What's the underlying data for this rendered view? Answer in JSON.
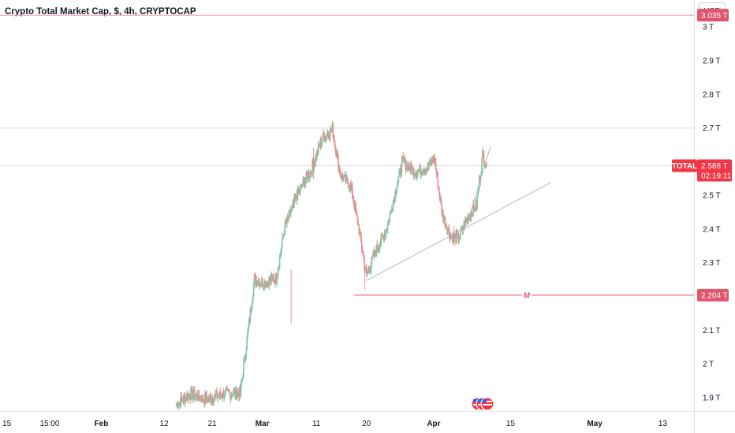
{
  "header": {
    "title": "Crypto Total Market Cap, $, 4h, CRYPTOCAP",
    "currency_label": "USD"
  },
  "colors": {
    "up": "#089981",
    "down": "#f23645",
    "candle_up": "#7bc8a4",
    "candle_down": "#f08a8f",
    "horizontal_line": "#f38ca6",
    "price_tag": "#f23645",
    "level_tag": "#e0566c",
    "trendline": "#b2b5be",
    "axis_text": "#131722"
  },
  "price_axis": {
    "ticks": [
      "3 T",
      "2.9 T",
      "2.8 T",
      "2.7 T",
      "2.5 T",
      "2.4 T",
      "2.3 T",
      "2.1 T",
      "2 T",
      "1.9 T"
    ],
    "tick_values": [
      3.0,
      2.9,
      2.8,
      2.7,
      2.5,
      2.4,
      2.3,
      2.1,
      2.0,
      1.9
    ]
  },
  "time_axis": {
    "labels": [
      {
        "text": "15",
        "bold": false,
        "t": 0.2
      },
      {
        "text": "15:00",
        "bold": false,
        "t": 10.9
      },
      {
        "text": "Feb",
        "bold": true,
        "t": 23.8
      },
      {
        "text": "12",
        "bold": false,
        "t": 39.5
      },
      {
        "text": "21",
        "bold": false,
        "t": 51.5
      },
      {
        "text": "Mar",
        "bold": true,
        "t": 64.0
      },
      {
        "text": "11",
        "bold": false,
        "t": 77.5
      },
      {
        "text": "20",
        "bold": false,
        "t": 90.0
      },
      {
        "text": "Apr",
        "bold": true,
        "t": 106.8
      },
      {
        "text": "15",
        "bold": false,
        "t": 126.0
      },
      {
        "text": "May",
        "bold": true,
        "t": 147.0
      },
      {
        "text": "13",
        "bold": false,
        "t": 164.0
      }
    ]
  },
  "tags": {
    "top_level": "3.035 T",
    "symbol": "TOTAL",
    "last_price": "2.588 T",
    "countdown": "02:19:11",
    "bottom_level": "2.204 T",
    "marker_label": "M"
  },
  "drawings": {
    "resistance_level": 3.035,
    "support_level": 2.204,
    "support_start_t": 87.0,
    "trendline": {
      "t1": 90.0,
      "v1": 2.247,
      "t2": 136.0,
      "v2": 2.538
    },
    "short_trendline": {
      "t1": 115.0,
      "v1": 2.41,
      "t2": 121.0,
      "v2": 2.645
    },
    "marker_t": 130.0
  },
  "chart_data": {
    "type": "candlestick",
    "title": "Crypto Total Market Cap, $, 4h, CRYPTOCAP",
    "xlabel": "",
    "ylabel": "",
    "y_unit": "T",
    "ylim": [
      1.86,
      3.08
    ],
    "time_unit": "days since Jan 15",
    "x_range": [
      -1.5,
      171.8
    ],
    "grid": false,
    "last_value": 2.588,
    "anchors": [
      {
        "t": 42.5,
        "v": 1.88
      },
      {
        "t": 46.0,
        "v": 1.91
      },
      {
        "t": 50.0,
        "v": 1.895
      },
      {
        "t": 54.5,
        "v": 1.91
      },
      {
        "t": 58.5,
        "v": 1.915
      },
      {
        "t": 60.5,
        "v": 2.1
      },
      {
        "t": 62.0,
        "v": 2.25
      },
      {
        "t": 64.5,
        "v": 2.24
      },
      {
        "t": 67.5,
        "v": 2.255
      },
      {
        "t": 69.5,
        "v": 2.4
      },
      {
        "t": 73.0,
        "v": 2.51
      },
      {
        "t": 76.0,
        "v": 2.57
      },
      {
        "t": 79.0,
        "v": 2.67
      },
      {
        "t": 81.5,
        "v": 2.695
      },
      {
        "t": 83.5,
        "v": 2.56
      },
      {
        "t": 86.0,
        "v": 2.53
      },
      {
        "t": 88.0,
        "v": 2.41
      },
      {
        "t": 90.0,
        "v": 2.26
      },
      {
        "t": 92.5,
        "v": 2.34
      },
      {
        "t": 95.0,
        "v": 2.4
      },
      {
        "t": 97.0,
        "v": 2.5
      },
      {
        "t": 99.0,
        "v": 2.6
      },
      {
        "t": 102.0,
        "v": 2.57
      },
      {
        "t": 105.0,
        "v": 2.58
      },
      {
        "t": 107.0,
        "v": 2.61
      },
      {
        "t": 109.0,
        "v": 2.44
      },
      {
        "t": 111.0,
        "v": 2.38
      },
      {
        "t": 113.0,
        "v": 2.37
      },
      {
        "t": 115.0,
        "v": 2.43
      },
      {
        "t": 117.5,
        "v": 2.47
      },
      {
        "t": 119.0,
        "v": 2.62
      },
      {
        "t": 120.0,
        "v": 2.588
      }
    ]
  }
}
